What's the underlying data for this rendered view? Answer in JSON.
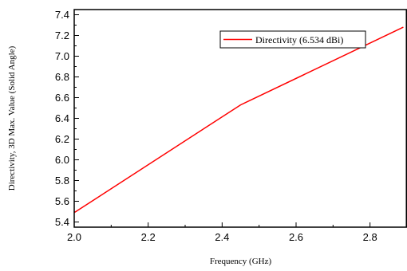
{
  "chart_data": {
    "type": "line",
    "xlabel": "Frequency (GHz)",
    "ylabel": "Directivity, 3D Max. Value (Solid Angle)",
    "xlim": [
      2.0,
      2.9
    ],
    "ylim": [
      5.35,
      7.45
    ],
    "x_ticks": [
      2.0,
      2.2,
      2.4,
      2.6,
      2.8
    ],
    "x_tick_labels": [
      "2.0",
      "2.2",
      "2.4",
      "2.6",
      "2.8"
    ],
    "y_ticks": [
      5.4,
      5.6,
      5.8,
      6.0,
      6.2,
      6.4,
      6.6,
      6.8,
      7.0,
      7.2,
      7.4
    ],
    "y_tick_labels": [
      "5.4",
      "5.6",
      "5.8",
      "6.0",
      "6.2",
      "6.4",
      "6.6",
      "6.8",
      "7.0",
      "7.2",
      "7.4"
    ],
    "grid": false,
    "legend_position": "top-right",
    "series": [
      {
        "name": "Directivity (6.534 dBi)",
        "color": "#ff0000",
        "x": [
          2.0,
          2.45,
          2.89
        ],
        "y": [
          5.49,
          6.53,
          7.28
        ]
      }
    ]
  }
}
